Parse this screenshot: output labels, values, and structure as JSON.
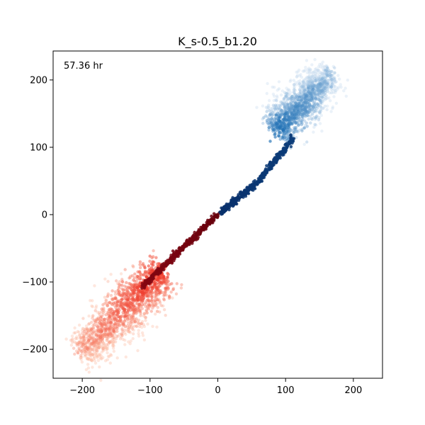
{
  "chart_data": {
    "type": "scatter",
    "title": "K_s-0.5_b1.20",
    "annotation": "57.36 hr",
    "xlabel": "",
    "ylabel": "",
    "xlim": [
      -243,
      243
    ],
    "ylim": [
      -243,
      243
    ],
    "xticks": [
      -200,
      -100,
      0,
      100,
      200
    ],
    "yticks": [
      -200,
      -100,
      0,
      100,
      200
    ],
    "xtick_labels": [
      "−200",
      "−100",
      "0",
      "100",
      "200"
    ],
    "ytick_labels": [
      "−200",
      "−100",
      "0",
      "100",
      "200"
    ],
    "grid": false,
    "legend": "none",
    "series": [
      {
        "colormap": "Reds",
        "points_description": "negative branch",
        "core_line": [
          [
            0,
            0
          ],
          [
            -20,
            -18
          ],
          [
            -40,
            -40
          ],
          [
            -60,
            -60
          ],
          [
            -75,
            -75
          ],
          [
            -90,
            -88
          ],
          [
            -105,
            -103
          ]
        ],
        "blob": {
          "center": [
            -135,
            -150
          ],
          "extent_x": [
            -210,
            -65
          ],
          "extent_y": [
            -215,
            -75
          ]
        }
      },
      {
        "colormap": "Blues",
        "points_description": "positive branch",
        "core_line": [
          [
            0,
            0
          ],
          [
            20,
            18
          ],
          [
            40,
            33
          ],
          [
            60,
            50
          ],
          [
            80,
            72
          ],
          [
            95,
            95
          ],
          [
            110,
            115
          ]
        ],
        "blob": {
          "center": [
            125,
            160
          ],
          "extent_x": [
            50,
            175
          ],
          "extent_y": [
            80,
            220
          ]
        }
      }
    ],
    "colors": {
      "red_dark": "#67000d",
      "red_light": "#fcbba1",
      "blue_dark": "#08306b",
      "blue_light": "#c6dbef"
    }
  }
}
